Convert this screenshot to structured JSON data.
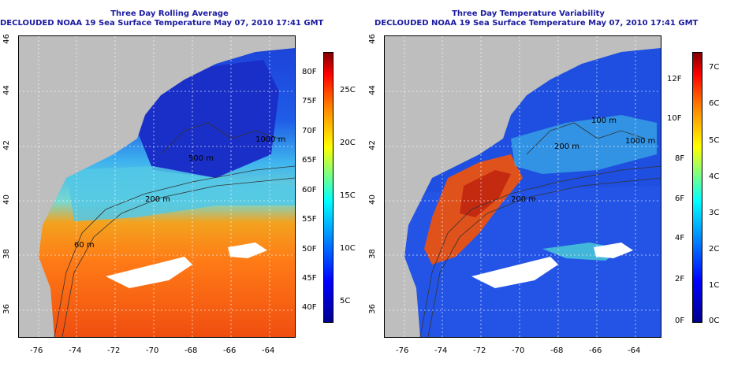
{
  "left": {
    "title": "Three Day Rolling Average",
    "subtitle": "DECLOUDED NOAA 19 Sea Surface Temperature May 07, 2010 17:41 GMT",
    "colorbar_f": [
      "40F",
      "45F",
      "50F",
      "55F",
      "60F",
      "65F",
      "70F",
      "75F",
      "80F"
    ],
    "colorbar_c": [
      "5C",
      "10C",
      "15C",
      "20C",
      "25C"
    ],
    "contours": [
      "1000 m",
      "500 m",
      "200 m",
      "60 m"
    ]
  },
  "right": {
    "title": "Three Day Temperature Variability",
    "subtitle": "DECLOUDED NOAA 19 Sea Surface Temperature May 07, 2010 17:41 GMT",
    "colorbar_f": [
      "0F",
      "2F",
      "4F",
      "6F",
      "8F",
      "10F",
      "12F"
    ],
    "colorbar_c": [
      "0C",
      "1C",
      "2C",
      "3C",
      "4C",
      "5C",
      "6C",
      "7C"
    ],
    "contours": [
      "1000 m",
      "100 m",
      "200 m",
      "200 m"
    ]
  },
  "axes": {
    "x_ticks": [
      "-76",
      "-74",
      "-72",
      "-70",
      "-68",
      "-66",
      "-64"
    ],
    "y_ticks": [
      "36",
      "38",
      "40",
      "42",
      "44",
      "46"
    ]
  },
  "colors": {
    "title": "#1a1aa0",
    "land": "#bebebe",
    "no_data": "#ffffff"
  }
}
